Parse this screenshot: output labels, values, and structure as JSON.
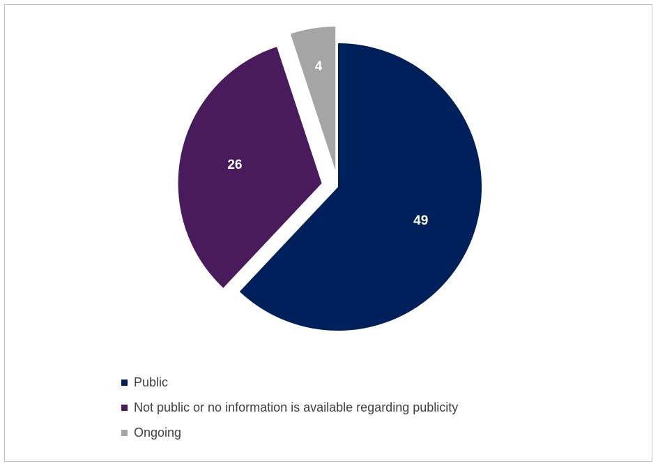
{
  "chart_data": {
    "type": "pie",
    "title": "",
    "categories": [
      "Public",
      "Not public or no information is available regarding publicity",
      "Ongoing"
    ],
    "values": [
      49,
      26,
      4
    ],
    "colors": [
      "#00205b",
      "#4a1b5c",
      "#a5a5a5"
    ],
    "exploded": [
      false,
      true,
      true
    ],
    "data_labels": [
      "49",
      "26",
      "4"
    ],
    "legend": "bottom-left",
    "start_angle_deg": 0,
    "direction": "clockwise"
  },
  "legend": {
    "items": [
      {
        "label": "Public",
        "color": "#00205b"
      },
      {
        "label": "Not public or no information is available regarding publicity",
        "color": "#4a1b5c"
      },
      {
        "label": "Ongoing",
        "color": "#a5a5a5"
      }
    ]
  }
}
